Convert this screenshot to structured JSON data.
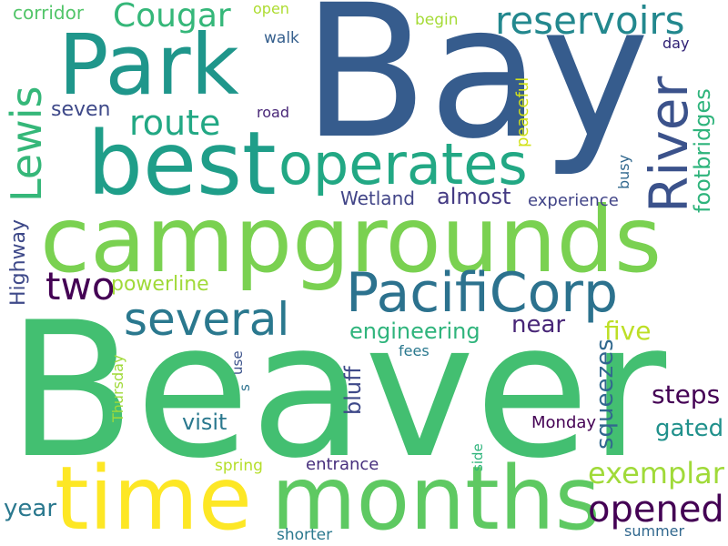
{
  "words": [
    {
      "text": "Beaver",
      "color": "#43bf71"
    },
    {
      "text": "Bay",
      "color": "#365c8d"
    },
    {
      "text": "campgrounds",
      "color": "#7ad151"
    },
    {
      "text": "months",
      "color": "#5ec962"
    },
    {
      "text": "time",
      "color": "#fde725"
    },
    {
      "text": "best",
      "color": "#1f9e89"
    },
    {
      "text": "Park",
      "color": "#1f968b"
    },
    {
      "text": "PacifiCorp",
      "color": "#2c728e"
    },
    {
      "text": "operates",
      "color": "#22a884"
    },
    {
      "text": "River",
      "color": "#3b528b"
    },
    {
      "text": "several",
      "color": "#2a788e"
    },
    {
      "text": "Lewis",
      "color": "#35b779"
    },
    {
      "text": "reservoirs",
      "color": "#23888e"
    },
    {
      "text": "Cougar",
      "color": "#35b779"
    },
    {
      "text": "opened",
      "color": "#440154"
    },
    {
      "text": "route",
      "color": "#22a884"
    },
    {
      "text": "two",
      "color": "#440154"
    },
    {
      "text": "exemplar",
      "color": "#a0da39"
    },
    {
      "text": "footbridges",
      "color": "#2fb47c"
    },
    {
      "text": "squeezes",
      "color": "#31688e"
    },
    {
      "text": "steps",
      "color": "#440154"
    },
    {
      "text": "engineering",
      "color": "#2fb47c"
    },
    {
      "text": "Highway",
      "color": "#3e4989"
    },
    {
      "text": "powerline",
      "color": "#a0da39"
    },
    {
      "text": "five",
      "color": "#bddf26"
    },
    {
      "text": "bluff",
      "color": "#3e4989"
    },
    {
      "text": "almost",
      "color": "#443a83"
    },
    {
      "text": "Wetland",
      "color": "#414487"
    },
    {
      "text": "near",
      "color": "#482677"
    },
    {
      "text": "gated",
      "color": "#21918c"
    },
    {
      "text": "visit",
      "color": "#2a788e"
    },
    {
      "text": "year",
      "color": "#2a788e"
    },
    {
      "text": "seven",
      "color": "#3e4989"
    },
    {
      "text": "peaceful",
      "color": "#d2e21b"
    },
    {
      "text": "corridor",
      "color": "#52c569"
    },
    {
      "text": "experience",
      "color": "#414487"
    },
    {
      "text": "Monday",
      "color": "#440154"
    },
    {
      "text": "entrance",
      "color": "#472f7d"
    },
    {
      "text": "Thursday",
      "color": "#a0da39"
    },
    {
      "text": "spring",
      "color": "#b5de2b"
    },
    {
      "text": "shorter",
      "color": "#2a788e"
    },
    {
      "text": "summer",
      "color": "#31688e"
    },
    {
      "text": "walk",
      "color": "#355f8d"
    },
    {
      "text": "road",
      "color": "#482677"
    },
    {
      "text": "begin",
      "color": "#a5db36"
    },
    {
      "text": "open",
      "color": "#addc30"
    },
    {
      "text": "day",
      "color": "#2d1e73"
    },
    {
      "text": "busy",
      "color": "#31688e"
    },
    {
      "text": "fees",
      "color": "#2a788e"
    },
    {
      "text": "use",
      "color": "#3b528b"
    },
    {
      "text": "s",
      "color": "#2c728e"
    },
    {
      "text": "side",
      "color": "#2fb47c"
    }
  ]
}
